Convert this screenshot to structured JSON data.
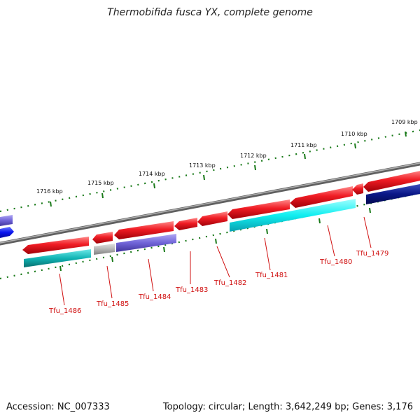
{
  "header": {
    "title": "Thermobifida fusca YX, complete genome"
  },
  "footer": {
    "accession": "Accession: NC_007333",
    "summary": "Topology: circular; Length: 3,642,249 bp; Genes: 3,176"
  },
  "ruler": {
    "labels": [
      "1716 kbp",
      "1715 kbp",
      "1714 kbp",
      "1713 kbp",
      "1712 kbp",
      "1711 kbp",
      "1710 kbp",
      "1709 kbp"
    ]
  },
  "genes": [
    {
      "name": "Tfu_1486",
      "strand": "reverse",
      "color": "#e8141e"
    },
    {
      "name": "Tfu_1485",
      "strand": "reverse",
      "color": "#e8141e"
    },
    {
      "name": "Tfu_1484",
      "strand": "reverse",
      "color": "#e8141e"
    },
    {
      "name": "Tfu_1483",
      "strand": "reverse",
      "color": "#e8141e"
    },
    {
      "name": "Tfu_1482",
      "strand": "reverse",
      "color": "#e8141e"
    },
    {
      "name": "Tfu_1481",
      "strand": "reverse",
      "color": "#e8141e"
    },
    {
      "name": "Tfu_1480",
      "strand": "reverse",
      "color": "#e8141e"
    },
    {
      "name": "Tfu_1479",
      "strand": "reverse",
      "color": "#e8141e"
    }
  ],
  "cog_colors": {
    "teal": "#10b4b4",
    "gray": "#b4b4b4",
    "purple": "#7064d8",
    "cyan": "#10eef0",
    "navy": "#0a1888",
    "blue": "#0a14f0"
  },
  "colors": {
    "gene_label": "#d01010",
    "tick": "#1a7a1a",
    "backbone": "#808080"
  }
}
